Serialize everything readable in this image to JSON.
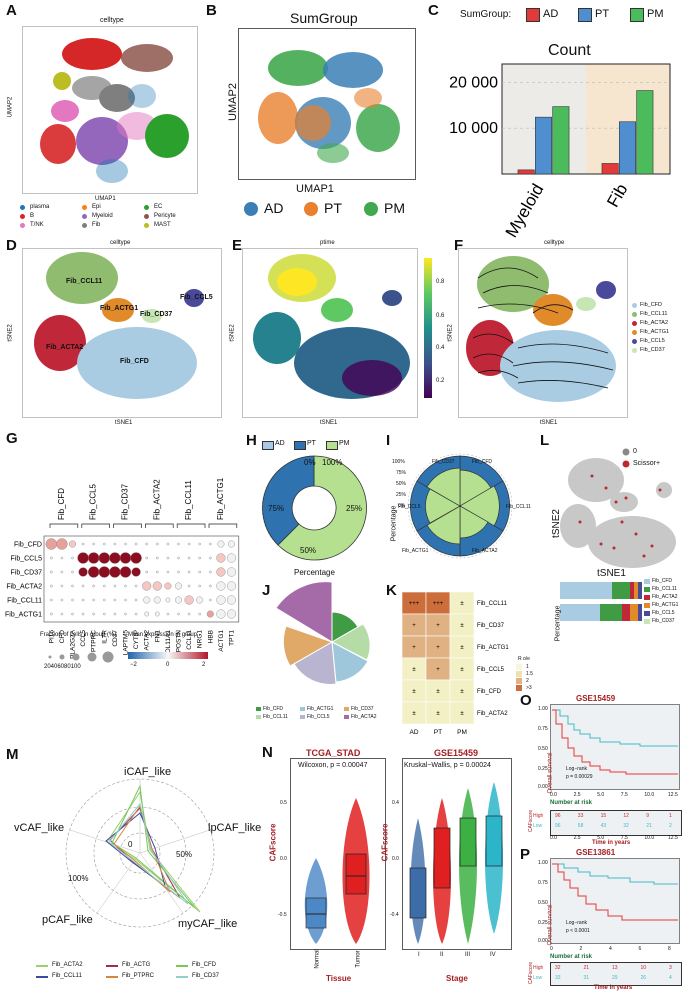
{
  "panel_letters": {
    "a": "A",
    "b": "B",
    "c": "C",
    "d": "D",
    "e": "E",
    "f": "F",
    "g": "G",
    "h": "H",
    "i": "I",
    "j": "J",
    "k": "K",
    "l": "L",
    "m": "M",
    "n": "N",
    "o": "O",
    "p": "P"
  },
  "panelA": {
    "title": "celltype",
    "xlabel": "UMAP1",
    "ylabel": "UMAP2",
    "legend": [
      "plasma",
      "Epi",
      "EC",
      "B",
      "Myeloid",
      "Pericyte",
      "T/NK",
      "Fib",
      "MAST"
    ],
    "colors": [
      "#1f77b4",
      "#ff7f0e",
      "#2ca02c",
      "#d62728",
      "#9467bd",
      "#8c564b",
      "#e377c2",
      "#7f7f7f",
      "#bcbd22"
    ]
  },
  "panelB": {
    "title": "SumGroup",
    "xlabel": "UMAP1",
    "ylabel": "UMAP2",
    "legend": [
      "AD",
      "PT",
      "PM"
    ],
    "colors": [
      "#3a7fb5",
      "#e8802e",
      "#41a84f"
    ]
  },
  "panelC": {
    "legend_title": "SumGroup:",
    "legend": [
      "AD",
      "PT",
      "PM"
    ],
    "colors": [
      "#e03a3a",
      "#4f8fcf",
      "#4cbb5c"
    ],
    "ytitle": "Count"
  },
  "chart_data": {
    "type": "bar",
    "title": "Count",
    "categories": [
      "Myeloid",
      "Fib"
    ],
    "series": [
      {
        "name": "AD",
        "values": [
          900,
          2300
        ]
      },
      {
        "name": "PT",
        "values": [
          12400,
          11400
        ]
      },
      {
        "name": "PM",
        "values": [
          14700,
          18200
        ]
      }
    ],
    "yticks": [
      "10 000",
      "20 000"
    ],
    "ytick_values": [
      10000,
      20000
    ],
    "ylim": [
      0,
      24000
    ]
  },
  "panelD": {
    "title": "celltype",
    "xlabel": "tSNE1",
    "ylabel": "tSNE2",
    "labels": [
      "Fib_CCL11",
      "Fib_ACTG1",
      "Fib_CD37",
      "Fib_CCL5",
      "Fib_ACTA2",
      "Fib_CFD"
    ]
  },
  "panelE": {
    "title": "ptime",
    "xlabel": "tSNE1",
    "ylabel": "tSNE2",
    "ticks": [
      "0.8",
      "0.6",
      "0.4",
      "0.2"
    ]
  },
  "panelF": {
    "title": "celltype",
    "xlabel": "tSNE1",
    "ylabel": "tSNE2",
    "legend": [
      "Fib_CFD",
      "Fib_CCL11",
      "Fib_ACTA2",
      "Fib_ACTG1",
      "Fib_CCL5",
      "Fib_CD37"
    ],
    "colors": [
      "#a9cce3",
      "#8fbc6f",
      "#c0283a",
      "#e08a2a",
      "#4a4a9a",
      "#c7e6b5"
    ]
  },
  "panelG": {
    "groups": [
      "Fib_CFD",
      "Fib_CCL5",
      "Fib_CD37",
      "Fib_ACTA2",
      "Fib_CCL11",
      "Fib_ACTG1"
    ],
    "rows": [
      "Fib_CFD",
      "Fib_CCL5",
      "Fib_CD37",
      "Fib_ACTA2",
      "Fib_CCL11",
      "Fib_ACTG1"
    ],
    "genes": [
      "PI16",
      "CFD",
      "PLA2G2A",
      "CCL5",
      "PTPRC",
      "IL7R",
      "CD37",
      "LAPTM5",
      "CYTIP",
      "ACTA2",
      "FN1",
      "COL11A1",
      "POSTN",
      "CCL11",
      "NRG1",
      "HBB",
      "ACTG1",
      "TPT1"
    ],
    "size_title": "Fraction of cells in group (%)",
    "size_ticks": "20406080100",
    "color_title": "Mean expression in group",
    "color_ticks": [
      "−2",
      "0",
      "2"
    ]
  },
  "panelH": {
    "legend": [
      "AD",
      "PT",
      "PM"
    ],
    "labels": [
      "0%",
      "100%",
      "75%",
      "25%",
      "50%"
    ],
    "xlabel": "Percentage"
  },
  "panelI": {
    "ylabel": "Percentage",
    "yticks": [
      "100%",
      "75%",
      "50%",
      "25%",
      "0%"
    ],
    "labels": [
      "Fib_CD37",
      "Fib_CFD",
      "Fib_CCL5",
      "Fib_CCL11",
      "Fib_ACTG1",
      "Fib_ACTA2"
    ]
  },
  "panelJ": {
    "legend": [
      "Fib_CFD",
      "Fib_ACTG1",
      "Fib_CD37",
      "Fib_CCL11",
      "Fib_CCL5",
      "Fib_ACTA2"
    ]
  },
  "panelK": {
    "cols": [
      "AD",
      "PT",
      "PM"
    ],
    "rows": [
      "Fib_CCL11",
      "Fib_CD37",
      "Fib_ACTG1",
      "Fib_CCL5",
      "Fib_CFD",
      "Fib_ACTA2"
    ],
    "cells": [
      [
        "+++",
        "+++",
        "±"
      ],
      [
        "+",
        "+",
        "±"
      ],
      [
        "+",
        "+",
        "±"
      ],
      [
        "±",
        "+",
        "±"
      ],
      [
        "±",
        "±",
        "±"
      ],
      [
        "±",
        "±",
        "±"
      ]
    ],
    "legend_title": "R o/e",
    "legend": [
      "1",
      "1.5",
      "2",
      ">3"
    ]
  },
  "panelL": {
    "legend": [
      "0",
      "Scissor+"
    ],
    "xlabel": "tSNE1",
    "ylabel": "tSNE2",
    "bar_label": "Percentage",
    "bar_legend": [
      "Fib_CFD",
      "Fib_CCL11",
      "Fib_ACTA2",
      "Fib_ACTG1",
      "Fib_CCL5",
      "Fib_CD37"
    ]
  },
  "panelM": {
    "axes": [
      "iCAF_like",
      "lpCAF_like",
      "myCAF_like",
      "pCAF_like",
      "vCAF_like"
    ],
    "rings": [
      "0",
      "50%",
      "100%"
    ],
    "legend": [
      "Fib_ACTA2",
      "Fib_ACTG",
      "Fib_CFD",
      "Fib_CCL11",
      "Fib_PTPRC",
      "Fib_CD37"
    ]
  },
  "panelN1": {
    "title": "TCGA_STAD",
    "test": "Wilcoxon, p = 0.00047",
    "ylabel": "CAFscore",
    "xlabel": "Tissue",
    "groups": [
      "Normal",
      "Tumor"
    ],
    "yticks": [
      "0.5",
      "0.0",
      "-0.5"
    ]
  },
  "panelN2": {
    "title": "GSE15459",
    "test": "Kruskal−Wallis, p = 0.00024",
    "ylabel": "CAFscore",
    "xlabel": "Stage",
    "groups": [
      "I",
      "II",
      "III",
      "IV"
    ],
    "yticks": [
      "0.4",
      "0.0",
      "-0.4"
    ]
  },
  "panelO": {
    "title": "GSE15459",
    "ylabel": "Overall survival",
    "logrank": "Log−rank",
    "p": "p = 0.00029",
    "risk_title": "Number at risk",
    "risk_ylabel": "CAFscore",
    "risk_rows": [
      {
        "name": "High",
        "vals": [
          "96",
          "33",
          "15",
          "12",
          "9",
          "1"
        ]
      },
      {
        "name": "Low",
        "vals": [
          "96",
          "58",
          "43",
          "32",
          "21",
          "2"
        ]
      }
    ],
    "xticks": [
      "0.0",
      "2.5",
      "5.0",
      "7.5",
      "10.0",
      "12.5"
    ],
    "yticks": [
      "1.00",
      "0.75",
      "0.50",
      "0.25",
      "0.00"
    ],
    "xlabel": "Time in years"
  },
  "panelP": {
    "title": "GSE13861",
    "ylabel": "Overall survival",
    "logrank": "Log−rank",
    "p": "p < 0.0001",
    "risk_title": "Number at risk",
    "risk_ylabel": "CAFscore",
    "risk_rows": [
      {
        "name": "High",
        "vals": [
          "32",
          "21",
          "13",
          "10",
          "3"
        ]
      },
      {
        "name": "Low",
        "vals": [
          "33",
          "31",
          "29",
          "26",
          "4"
        ]
      }
    ],
    "xticks": [
      "0",
      "2",
      "4",
      "6",
      "8"
    ],
    "yticks": [
      "1.00",
      "0.75",
      "0.50",
      "0.25",
      "0.00"
    ],
    "xlabel": "Time in years"
  }
}
